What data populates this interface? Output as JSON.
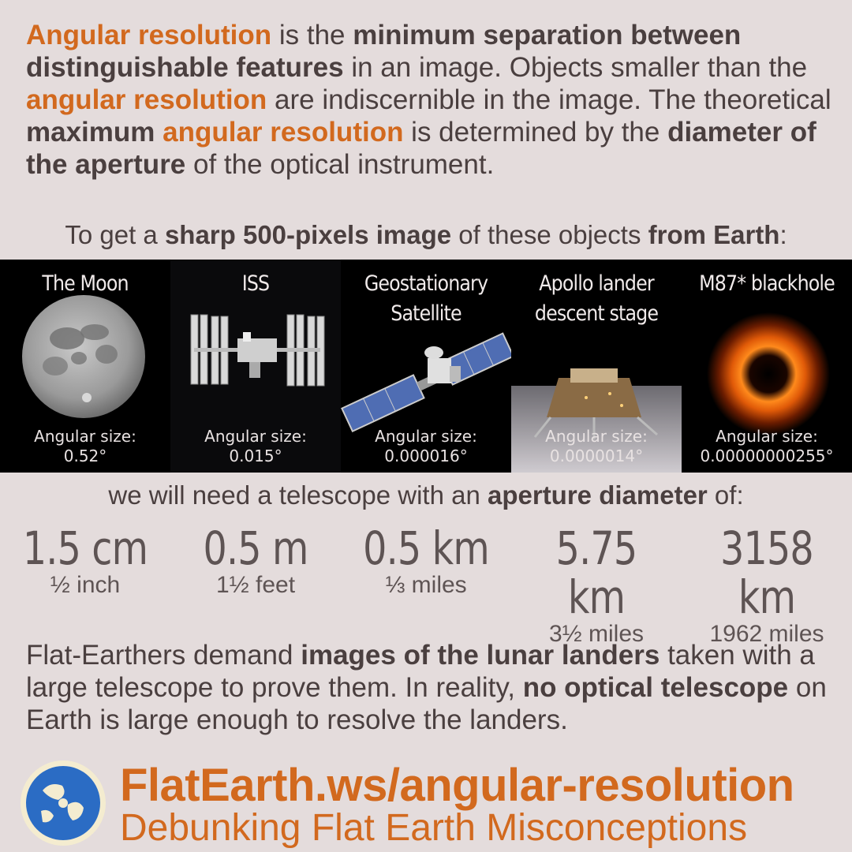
{
  "intro": {
    "t1": "Angular resolution",
    "t2": " is the ",
    "t3": "minimum separation between distinguishable features",
    "t4": " in an image. Objects smaller than the ",
    "t5": "angular resolution",
    "t6": " are indiscernible in the image. The theoretical ",
    "t7": "maximum",
    "t8": " ",
    "t9": "angular resolution",
    "t10": " is determined by the ",
    "t11": "diameter of the aperture",
    "t12": " of the optical instrument."
  },
  "lead": {
    "t1": "To get a ",
    "t2": "sharp 500-pixels image",
    "t3": " of these objects ",
    "t4": "from Earth",
    "t5": ":"
  },
  "objects": [
    {
      "title": "The Moon",
      "size_label": "Angular size:",
      "size_value": "0.52°"
    },
    {
      "title": "ISS",
      "size_label": "Angular size:",
      "size_value": "0.015°"
    },
    {
      "title": "Geostationary Satellite",
      "size_label": "Angular size:",
      "size_value": "0.000016°"
    },
    {
      "title": "Apollo lander descent stage",
      "size_label": "Angular size:",
      "size_value": "0.0000014°"
    },
    {
      "title": "M87* blackhole",
      "size_label": "Angular size:",
      "size_value": "0.00000000255°"
    }
  ],
  "need": {
    "t1": "we will need a telescope with an ",
    "t2": "aperture diameter",
    "t3": " of:"
  },
  "apertures": [
    {
      "metric": "1.5 cm",
      "imperial": "½ inch"
    },
    {
      "metric": "0.5 m",
      "imperial": "1½ feet"
    },
    {
      "metric": "0.5 km",
      "imperial": "⅓ miles"
    },
    {
      "metric": "5.75 km",
      "imperial": "3½ miles"
    },
    {
      "metric": "3158 km",
      "imperial": "1962 miles"
    }
  ],
  "closing": {
    "t1": "Flat-Earthers demand ",
    "t2": "images of the lunar landers",
    "t3": " taken with a large telescope to prove them. In reality, ",
    "t4": "no optical telescope",
    "t5": " on Earth is large enough to resolve the landers."
  },
  "footer": {
    "url": "FlatEarth.ws/angular-resolution",
    "tagline": "Debunking Flat Earth Misconceptions"
  },
  "colors": {
    "background": "#e4dcdc",
    "accent": "#d2691e",
    "text": "#4a3f3f"
  },
  "icons": [
    "moon-image",
    "iss-image",
    "satellite-image",
    "lander-image",
    "blackhole-image",
    "globe-logo-icon"
  ]
}
